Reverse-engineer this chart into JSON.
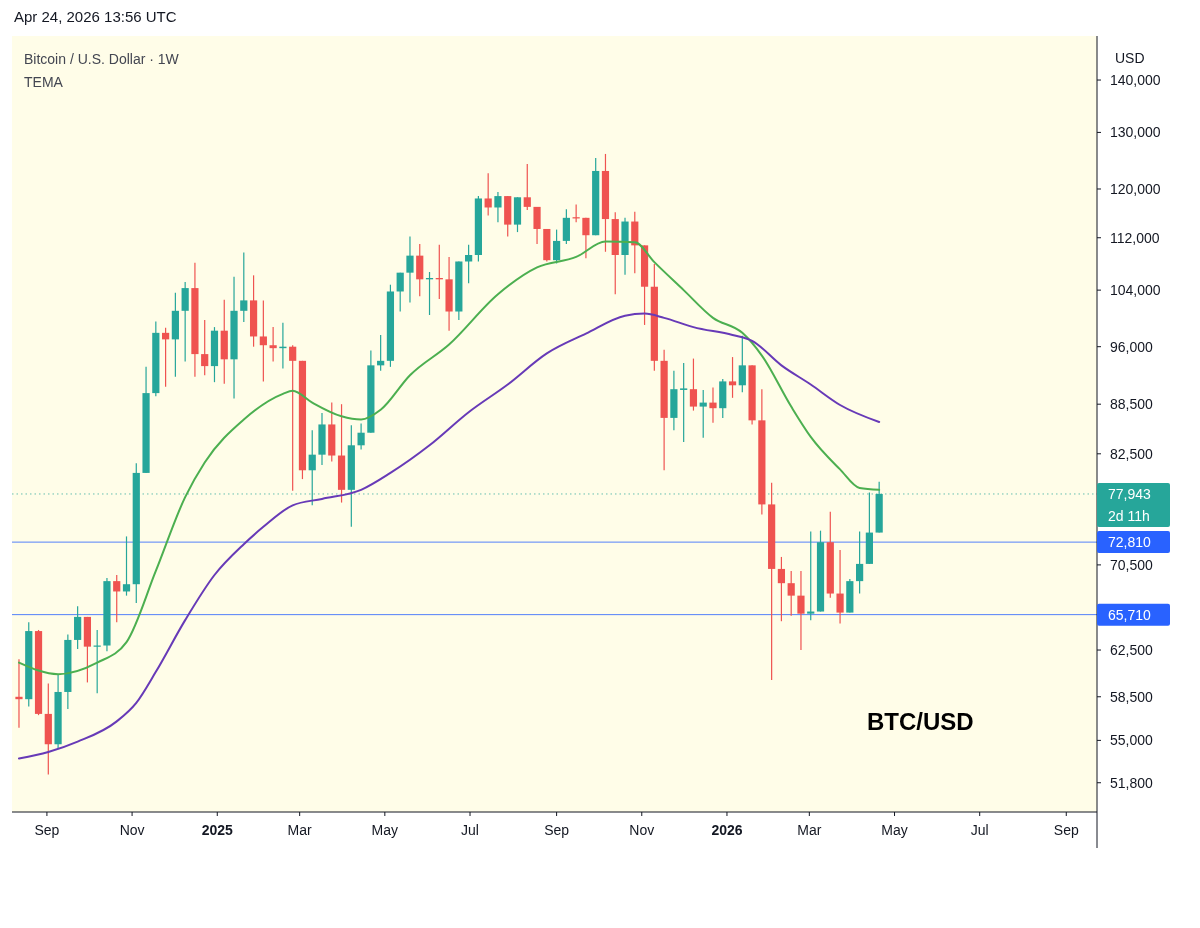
{
  "chart_data": {
    "type": "candlestick",
    "title": "Bitcoin / U.S. Dollar · 1W",
    "subtitle": "TEMA",
    "ylabel": "USD",
    "log": true,
    "annotations": [
      "Apr 24, 2026 13:56 UTC",
      "BTC/USD"
    ],
    "xlim": [
      "2024-08-07",
      "2026-09-23"
    ],
    "xticks": [
      {
        "value": "2024-09-01",
        "label": "Sep"
      },
      {
        "value": "2024-11-01",
        "label": "Nov"
      },
      {
        "value": "2025-01-01",
        "label": "2025"
      },
      {
        "value": "2025-03-01",
        "label": "Mar"
      },
      {
        "value": "2025-05-01",
        "label": "May"
      },
      {
        "value": "2025-07-01",
        "label": "Jul"
      },
      {
        "value": "2025-09-01",
        "label": "Sep"
      },
      {
        "value": "2025-11-01",
        "label": "Nov"
      },
      {
        "value": "2026-01-01",
        "label": "2026"
      },
      {
        "value": "2026-03-01",
        "label": "Mar"
      },
      {
        "value": "2026-05-01",
        "label": "May"
      },
      {
        "value": "2026-07-01",
        "label": "Jul"
      },
      {
        "value": "2026-09-01",
        "label": "Sep"
      }
    ],
    "ylim": [
      49700,
      149000
    ],
    "yticks": [
      {
        "value": 51800,
        "label": "51,800"
      },
      {
        "value": 55000,
        "label": "55,000"
      },
      {
        "value": 58500,
        "label": "58,500"
      },
      {
        "value": 62500,
        "label": "62,500"
      },
      {
        "value": 70500,
        "label": "70,500"
      },
      {
        "value": 82500,
        "label": "82,500"
      },
      {
        "value": 88500,
        "label": "88,500"
      },
      {
        "value": 96000,
        "label": "96,000"
      },
      {
        "value": 104000,
        "label": "104,000"
      },
      {
        "value": 112000,
        "label": "112,000"
      },
      {
        "value": 120000,
        "label": "120,000"
      },
      {
        "value": 130000,
        "label": "130,000"
      },
      {
        "value": 140000,
        "label": "140,000"
      }
    ],
    "ref_lines": [
      {
        "axis": "y",
        "value": 77943,
        "label": "77,943\n2d 11h",
        "color": "#26a69a",
        "line_style": "dotted"
      },
      {
        "axis": "y",
        "value": 72810,
        "label": "72,810",
        "color": "#2962ff",
        "line_style": "solid"
      },
      {
        "axis": "y",
        "value": 65710,
        "label": "65,710",
        "color": "#2962ff",
        "line_style": "solid"
      }
    ],
    "series": [
      {
        "x": [
          "2024-08-12",
          "2024-08-19",
          "2024-08-26",
          "2024-09-02",
          "2024-09-09",
          "2024-09-16",
          "2024-09-23",
          "2024-09-30",
          "2024-10-07",
          "2024-10-14",
          "2024-10-21",
          "2024-10-28",
          "2024-11-04",
          "2024-11-11",
          "2024-11-18",
          "2024-11-25",
          "2024-12-02",
          "2024-12-09",
          "2024-12-16",
          "2024-12-23",
          "2024-12-30",
          "2025-01-06",
          "2025-01-13",
          "2025-01-20",
          "2025-01-27",
          "2025-02-03",
          "2025-02-10",
          "2025-02-17",
          "2025-02-24",
          "2025-03-03",
          "2025-03-10",
          "2025-03-17",
          "2025-03-24",
          "2025-03-31",
          "2025-04-07",
          "2025-04-14",
          "2025-04-21",
          "2025-04-28",
          "2025-05-05",
          "2025-05-12",
          "2025-05-19",
          "2025-05-26",
          "2025-06-02",
          "2025-06-09",
          "2025-06-16",
          "2025-06-23",
          "2025-06-30",
          "2025-07-07",
          "2025-07-14",
          "2025-07-21",
          "2025-07-28",
          "2025-08-04",
          "2025-08-11",
          "2025-08-18",
          "2025-08-25",
          "2025-09-01",
          "2025-09-08",
          "2025-09-15",
          "2025-09-22",
          "2025-09-29",
          "2025-10-06",
          "2025-10-13",
          "2025-10-20",
          "2025-10-27",
          "2025-11-03",
          "2025-11-10",
          "2025-11-17",
          "2025-11-24",
          "2025-12-01",
          "2025-12-08",
          "2025-12-15",
          "2025-12-22",
          "2025-12-29",
          "2026-01-05",
          "2026-01-12",
          "2026-01-19",
          "2026-01-26",
          "2026-02-02",
          "2026-02-09",
          "2026-02-16",
          "2026-02-23",
          "2026-03-02",
          "2026-03-09",
          "2026-03-16",
          "2026-03-23",
          "2026-03-30",
          "2026-04-06",
          "2026-04-13",
          "2026-04-20"
        ],
        "ohlc": [
          [
            58500,
            61700,
            56000,
            58300
          ],
          [
            58300,
            65000,
            57700,
            64200
          ],
          [
            64200,
            64300,
            57000,
            57100
          ],
          [
            57100,
            59600,
            52400,
            54700
          ],
          [
            54700,
            60400,
            54400,
            58900
          ],
          [
            58900,
            63900,
            57500,
            63400
          ],
          [
            63400,
            66500,
            62600,
            65500
          ],
          [
            65500,
            65500,
            59700,
            62800
          ],
          [
            62800,
            64300,
            58800,
            62900
          ],
          [
            62900,
            69200,
            62400,
            68900
          ],
          [
            68900,
            69500,
            65000,
            67900
          ],
          [
            67900,
            73400,
            67500,
            68600
          ],
          [
            68600,
            81400,
            66800,
            80300
          ],
          [
            80300,
            93300,
            80300,
            89900
          ],
          [
            89900,
            99500,
            89500,
            97900
          ],
          [
            97900,
            98600,
            90700,
            97000
          ],
          [
            97000,
            103600,
            92000,
            101000
          ],
          [
            101000,
            105200,
            94000,
            104300
          ],
          [
            104300,
            108100,
            92000,
            95000
          ],
          [
            95000,
            99700,
            92200,
            93400
          ],
          [
            93400,
            98700,
            91300,
            98200
          ],
          [
            98200,
            102600,
            91100,
            94300
          ],
          [
            94300,
            106000,
            89200,
            101000
          ],
          [
            101000,
            109700,
            99400,
            102500
          ],
          [
            102500,
            106200,
            96000,
            97400
          ],
          [
            97400,
            102500,
            91400,
            96200
          ],
          [
            96200,
            98700,
            94000,
            95800
          ],
          [
            95800,
            99300,
            93100,
            96000
          ],
          [
            96000,
            96200,
            78300,
            94100
          ],
          [
            94100,
            94100,
            79600,
            80600
          ],
          [
            80600,
            85300,
            76700,
            82400
          ],
          [
            82400,
            87400,
            81200,
            86000
          ],
          [
            86000,
            88700,
            81600,
            82300
          ],
          [
            82300,
            88500,
            77000,
            78400
          ],
          [
            78400,
            85900,
            74400,
            83500
          ],
          [
            83500,
            86100,
            83000,
            85000
          ],
          [
            85000,
            95500,
            85000,
            93500
          ],
          [
            93500,
            97600,
            92800,
            94100
          ],
          [
            94100,
            104800,
            93300,
            103800
          ],
          [
            103800,
            106600,
            100900,
            106600
          ],
          [
            106600,
            112200,
            102200,
            109200
          ],
          [
            109200,
            111000,
            103100,
            105600
          ],
          [
            105600,
            106700,
            100400,
            105800
          ],
          [
            105800,
            110900,
            102700,
            105600
          ],
          [
            105600,
            109000,
            98200,
            100900
          ],
          [
            100900,
            108300,
            99700,
            108300
          ],
          [
            108300,
            110900,
            105000,
            109300
          ],
          [
            109300,
            118800,
            108300,
            118400
          ],
          [
            118400,
            122700,
            115600,
            116900
          ],
          [
            116900,
            119500,
            114500,
            118800
          ],
          [
            118800,
            118800,
            112200,
            114100
          ],
          [
            114100,
            118600,
            112900,
            118600
          ],
          [
            118600,
            124300,
            116500,
            117000
          ],
          [
            117000,
            117000,
            111000,
            113400
          ],
          [
            113400,
            113400,
            108300,
            108500
          ],
          [
            108500,
            113300,
            108000,
            111500
          ],
          [
            111500,
            116600,
            111000,
            115200
          ],
          [
            115300,
            117400,
            114500,
            115100
          ],
          [
            115200,
            115200,
            108800,
            112400
          ],
          [
            112400,
            125400,
            112400,
            123100
          ],
          [
            123100,
            126100,
            109800,
            115000
          ],
          [
            115000,
            116100,
            103400,
            109300
          ],
          [
            109300,
            115200,
            106300,
            114600
          ],
          [
            114600,
            116200,
            106500,
            110800
          ],
          [
            110800,
            110800,
            99000,
            104500
          ],
          [
            104500,
            107900,
            92800,
            94100
          ],
          [
            94100,
            95600,
            80600,
            86800
          ],
          [
            86800,
            92800,
            85300,
            90400
          ],
          [
            90300,
            93800,
            83900,
            90500
          ],
          [
            90400,
            94400,
            87700,
            88200
          ],
          [
            88200,
            90300,
            84400,
            88700
          ],
          [
            88700,
            90600,
            86200,
            88000
          ],
          [
            88000,
            91700,
            86800,
            91400
          ],
          [
            91400,
            94600,
            89300,
            90900
          ],
          [
            90900,
            97500,
            90000,
            93500
          ],
          [
            93500,
            93500,
            86000,
            86500
          ],
          [
            86500,
            90400,
            75700,
            76800
          ],
          [
            76800,
            79200,
            59900,
            70100
          ],
          [
            70100,
            71300,
            65100,
            68700
          ],
          [
            68700,
            69900,
            65600,
            67500
          ],
          [
            67500,
            69900,
            62500,
            65800
          ],
          [
            65800,
            73900,
            65200,
            66000
          ],
          [
            66000,
            74000,
            66000,
            72800
          ],
          [
            72800,
            76000,
            67300,
            67700
          ],
          [
            67700,
            72000,
            64900,
            65900
          ],
          [
            65900,
            69100,
            65900,
            68900
          ],
          [
            68900,
            73900,
            67700,
            70600
          ],
          [
            70600,
            78100,
            70600,
            73800
          ],
          [
            73800,
            79300,
            73800,
            77943
          ]
        ]
      },
      {
        "type": "line",
        "color": "#4caf50",
        "x": [
          "2024-08-12",
          "2024-09-09",
          "2024-10-07",
          "2024-10-28",
          "2024-11-18",
          "2024-12-09",
          "2024-12-23",
          "2025-01-20",
          "2025-02-17",
          "2025-02-24",
          "2025-03-10",
          "2025-03-31",
          "2025-04-14",
          "2025-04-28",
          "2025-05-19",
          "2025-06-16",
          "2025-07-21",
          "2025-08-18",
          "2025-09-15",
          "2025-10-06",
          "2025-10-27",
          "2025-11-10",
          "2025-12-01",
          "2025-12-22",
          "2026-01-12",
          "2026-01-26",
          "2026-02-16",
          "2026-03-02",
          "2026-03-23",
          "2026-04-06",
          "2026-04-20"
        ],
        "values": [
          61400,
          60400,
          61400,
          63200,
          69900,
          77600,
          81500,
          86600,
          89800,
          90200,
          88700,
          87000,
          86600,
          87800,
          92200,
          96300,
          103400,
          107400,
          109000,
          111400,
          111300,
          108200,
          104000,
          100000,
          97900,
          94800,
          88200,
          84500,
          80700,
          78600,
          78400
        ]
      },
      {
        "type": "line",
        "color": "#673ab7",
        "x": [
          "2024-08-12",
          "2024-09-02",
          "2024-09-23",
          "2024-10-21",
          "2024-11-04",
          "2024-11-18",
          "2024-12-09",
          "2024-12-30",
          "2025-01-20",
          "2025-02-03",
          "2025-02-24",
          "2025-03-17",
          "2025-04-14",
          "2025-05-05",
          "2025-06-02",
          "2025-06-30",
          "2025-07-28",
          "2025-08-25",
          "2025-09-22",
          "2025-10-20",
          "2025-11-03",
          "2025-11-17",
          "2025-12-08",
          "2026-01-05",
          "2026-01-19",
          "2026-02-09",
          "2026-03-02",
          "2026-03-23",
          "2026-04-20"
        ],
        "values": [
          53600,
          54100,
          54900,
          56500,
          58000,
          60600,
          65200,
          69500,
          72600,
          74400,
          76700,
          77400,
          78400,
          80300,
          83500,
          87500,
          91000,
          95100,
          97800,
          100300,
          100600,
          100000,
          98700,
          97600,
          96800,
          93500,
          91000,
          88400,
          86300
        ]
      }
    ]
  }
}
